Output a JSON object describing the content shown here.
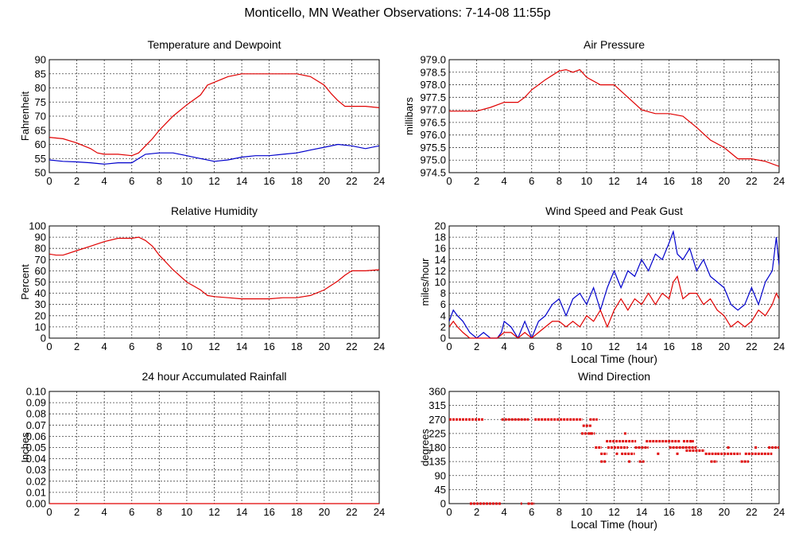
{
  "title": "Monticello, MN Weather Observations: 7-14-08 11:55p",
  "colors": {
    "red": "#e00000",
    "blue": "#0000cc",
    "grid": "#444444"
  },
  "chart_data": [
    {
      "id": "temp",
      "type": "line",
      "title": "Temperature and Dewpoint",
      "ylabel": "Fahrenheit",
      "xlabel": "",
      "xlim": [
        0,
        24
      ],
      "ylim": [
        50,
        90
      ],
      "ytick_labels": [
        "50",
        "55",
        "60",
        "65",
        "70",
        "75",
        "80",
        "85",
        "90"
      ],
      "xtick_labels": [
        "0",
        "2",
        "4",
        "6",
        "8",
        "10",
        "12",
        "14",
        "16",
        "18",
        "20",
        "22",
        "24"
      ],
      "series": [
        {
          "color": "red",
          "x": [
            0,
            1,
            2,
            3,
            3.5,
            4,
            5,
            6,
            6.5,
            7,
            7.5,
            8,
            9,
            10,
            11,
            11.5,
            12,
            13,
            14,
            15,
            16,
            17,
            18,
            19,
            20,
            20.5,
            21,
            21.5,
            22,
            23,
            24
          ],
          "y": [
            62.5,
            62,
            60.5,
            58.5,
            57,
            56.5,
            56.5,
            56,
            57,
            59.5,
            62,
            65,
            70,
            74,
            77.5,
            81,
            82,
            84,
            85,
            85,
            85,
            85,
            85,
            84,
            81,
            78,
            75.5,
            73.5,
            73.5,
            73.5,
            73
          ]
        },
        {
          "color": "blue",
          "x": [
            0,
            1,
            2,
            3,
            4,
            5,
            6,
            6.5,
            7,
            8,
            9,
            10,
            11,
            12,
            13,
            14,
            15,
            16,
            17,
            18,
            19,
            20,
            21,
            22,
            23,
            24
          ],
          "y": [
            54.5,
            54,
            53.8,
            53.5,
            53,
            53.5,
            53.5,
            55,
            56.5,
            57,
            57,
            56,
            55,
            54,
            54.5,
            55.5,
            56,
            56,
            56.5,
            57,
            58,
            59,
            60,
            59.5,
            58.5,
            59.5
          ]
        }
      ]
    },
    {
      "id": "pressure",
      "type": "line",
      "title": "Air Pressure",
      "ylabel": "millibars",
      "xlabel": "",
      "xlim": [
        0,
        24
      ],
      "ylim": [
        974.5,
        979.0
      ],
      "ytick_labels": [
        "974.5",
        "975.0",
        "975.5",
        "976.0",
        "976.5",
        "977.0",
        "977.5",
        "978.0",
        "978.5",
        "979.0"
      ],
      "xtick_labels": [
        "0",
        "2",
        "4",
        "6",
        "8",
        "10",
        "12",
        "14",
        "16",
        "18",
        "20",
        "22",
        "24"
      ],
      "series": [
        {
          "color": "red",
          "x": [
            0,
            1,
            2,
            3,
            4,
            5,
            5.5,
            6,
            6.5,
            7,
            8,
            8.5,
            9,
            9.5,
            10,
            11,
            12,
            13,
            14,
            15,
            16,
            17,
            18,
            19,
            20,
            21,
            22,
            23,
            24
          ],
          "y": [
            976.95,
            976.95,
            976.95,
            977.1,
            977.3,
            977.3,
            977.5,
            977.8,
            978.0,
            978.2,
            978.55,
            978.6,
            978.5,
            978.6,
            978.3,
            978.0,
            978.0,
            977.5,
            977.0,
            976.85,
            976.85,
            976.75,
            976.3,
            975.8,
            975.5,
            975.05,
            975.05,
            974.95,
            974.75
          ]
        }
      ]
    },
    {
      "id": "rh",
      "type": "line",
      "title": "Relative Humidity",
      "ylabel": "Percent",
      "xlabel": "",
      "xlim": [
        0,
        24
      ],
      "ylim": [
        0,
        100
      ],
      "ytick_labels": [
        "0",
        "10",
        "20",
        "30",
        "40",
        "50",
        "60",
        "70",
        "80",
        "90",
        "100"
      ],
      "xtick_labels": [
        "0",
        "2",
        "4",
        "6",
        "8",
        "10",
        "12",
        "14",
        "16",
        "18",
        "20",
        "22",
        "24"
      ],
      "series": [
        {
          "color": "red",
          "x": [
            0,
            0.5,
            1,
            2,
            3,
            4,
            5,
            6,
            6.5,
            7,
            7.5,
            8,
            9,
            10,
            11,
            11.5,
            12,
            13,
            14,
            15,
            16,
            17,
            18,
            19,
            20,
            21,
            21.5,
            22,
            23,
            24
          ],
          "y": [
            75,
            74,
            74,
            78,
            82,
            86,
            89,
            89,
            90,
            87,
            82,
            74,
            61,
            50,
            43,
            38,
            37,
            36,
            35,
            35,
            35,
            36,
            36,
            38,
            43,
            51,
            56,
            60,
            60,
            61
          ]
        }
      ]
    },
    {
      "id": "wind",
      "type": "line",
      "title": "Wind Speed and Peak Gust",
      "ylabel": "miles/hour",
      "xlabel": "Local Time (hour)",
      "xlim": [
        0,
        24
      ],
      "ylim": [
        0,
        20
      ],
      "ytick_labels": [
        "0",
        "2",
        "4",
        "6",
        "8",
        "10",
        "12",
        "14",
        "16",
        "18",
        "20"
      ],
      "xtick_labels": [
        "0",
        "2",
        "4",
        "6",
        "8",
        "10",
        "12",
        "14",
        "16",
        "18",
        "20",
        "22",
        "24"
      ],
      "series": [
        {
          "color": "blue",
          "x": [
            0,
            0.3,
            0.6,
            1,
            1.5,
            2,
            2.5,
            3,
            3.5,
            3.8,
            4,
            4.5,
            5,
            5.5,
            6,
            6.5,
            7,
            7.5,
            8,
            8.5,
            9,
            9.5,
            10,
            10.5,
            11,
            11.5,
            12,
            12.5,
            13,
            13.5,
            14,
            14.5,
            15,
            15.5,
            16,
            16.3,
            16.6,
            17,
            17.5,
            18,
            18.5,
            19,
            19.5,
            20,
            20.5,
            21,
            21.5,
            22,
            22.5,
            23,
            23.5,
            23.8,
            24
          ],
          "y": [
            3,
            5,
            4,
            3,
            1,
            0,
            1,
            0,
            0,
            1,
            3,
            2,
            0,
            3,
            0,
            3,
            4,
            6,
            7,
            4,
            7,
            8,
            6,
            9,
            5,
            9,
            12,
            9,
            12,
            11,
            14,
            12,
            15,
            14,
            17,
            19,
            15,
            14,
            16,
            12,
            14,
            11,
            10,
            9,
            6,
            5,
            6,
            9,
            6,
            10,
            12,
            18,
            13
          ]
        },
        {
          "color": "red",
          "x": [
            0,
            0.3,
            0.6,
            1,
            1.5,
            2,
            2.5,
            3,
            3.5,
            4,
            4.5,
            5,
            5.5,
            6,
            6.5,
            7,
            7.5,
            8,
            8.5,
            9,
            9.5,
            10,
            10.5,
            11,
            11.5,
            12,
            12.5,
            13,
            13.5,
            14,
            14.5,
            15,
            15.5,
            16,
            16.3,
            16.6,
            17,
            17.5,
            18,
            18.5,
            19,
            19.5,
            20,
            20.5,
            21,
            21.5,
            22,
            22.5,
            23,
            23.5,
            23.8,
            24
          ],
          "y": [
            2,
            3,
            2,
            1,
            0,
            0,
            0,
            0,
            0,
            1,
            1,
            0,
            1,
            0,
            1,
            2,
            3,
            3,
            2,
            3,
            2,
            4,
            3,
            5,
            2,
            5,
            7,
            5,
            7,
            6,
            8,
            6,
            8,
            7,
            10,
            11,
            7,
            8,
            8,
            6,
            7,
            5,
            4,
            2,
            3,
            2,
            3,
            5,
            4,
            6,
            8,
            7
          ]
        }
      ]
    },
    {
      "id": "rain",
      "type": "line",
      "title": "24 hour Accumulated Rainfall",
      "ylabel": "Inches",
      "xlabel": "",
      "xlim": [
        0,
        24
      ],
      "ylim": [
        0,
        0.1
      ],
      "ytick_labels": [
        "0.00",
        "0.01",
        "0.02",
        "0.03",
        "0.04",
        "0.05",
        "0.06",
        "0.07",
        "0.08",
        "0.09",
        "0.10"
      ],
      "xtick_labels": [
        "0",
        "2",
        "4",
        "6",
        "8",
        "10",
        "12",
        "14",
        "16",
        "18",
        "20",
        "22",
        "24"
      ],
      "series": [
        {
          "color": "red",
          "x": [
            0,
            24
          ],
          "y": [
            0,
            0
          ]
        }
      ]
    },
    {
      "id": "dir",
      "type": "scatter",
      "title": "Wind Direction",
      "ylabel": "degrees",
      "xlabel": "Local Time (hour)",
      "xlim": [
        0,
        24
      ],
      "ylim": [
        0,
        360
      ],
      "ytick_labels": [
        "0",
        "45",
        "90",
        "135",
        "180",
        "225",
        "270",
        "315",
        "360"
      ],
      "xtick_labels": [
        "0",
        "2",
        "4",
        "6",
        "8",
        "10",
        "12",
        "14",
        "16",
        "18",
        "20",
        "22",
        "24"
      ],
      "segments": [
        {
          "x": [
            0,
            2.5
          ],
          "y": 270
        },
        {
          "x": [
            1.5,
            3.8
          ],
          "y": 0
        },
        {
          "x": [
            3.8,
            5.8
          ],
          "y": 270
        },
        {
          "x": [
            5.2,
            5.3
          ],
          "y": 0
        },
        {
          "x": [
            5.7,
            6.2
          ],
          "y": 0
        },
        {
          "x": [
            6.2,
            9.7
          ],
          "y": 270
        },
        {
          "x": [
            9.7,
            10.4
          ],
          "y": 250
        },
        {
          "x": [
            9.6,
            10.6
          ],
          "y": 225
        },
        {
          "x": [
            10.2,
            10.8
          ],
          "y": 270
        },
        {
          "x": [
            10.6,
            11.1
          ],
          "y": 180
        },
        {
          "x": [
            11.0,
            11.4
          ],
          "y": 135
        },
        {
          "x": [
            11.0,
            11.5
          ],
          "y": 160
        },
        {
          "x": [
            11.4,
            13.6
          ],
          "y": 200
        },
        {
          "x": [
            11.5,
            13.0
          ],
          "y": 180
        },
        {
          "x": [
            12.5,
            13.5
          ],
          "y": 160
        },
        {
          "x": [
            13.5,
            14.5
          ],
          "y": 180
        },
        {
          "x": [
            14.3,
            16.8
          ],
          "y": 200
        },
        {
          "x": [
            13.8,
            14.2
          ],
          "y": 135
        },
        {
          "x": [
            16.0,
            18.0
          ],
          "y": 180
        },
        {
          "x": [
            17.0,
            17.8
          ],
          "y": 200
        },
        {
          "x": [
            17.2,
            18.6
          ],
          "y": 170
        },
        {
          "x": [
            18.6,
            19.5
          ],
          "y": 160
        },
        {
          "x": [
            19.0,
            19.5
          ],
          "y": 135
        },
        {
          "x": [
            19.5,
            21.2
          ],
          "y": 160
        },
        {
          "x": [
            21.2,
            21.8
          ],
          "y": 135
        },
        {
          "x": [
            21.5,
            23.5
          ],
          "y": 160
        },
        {
          "x": [
            23.2,
            24
          ],
          "y": 180
        }
      ],
      "dots": [
        {
          "x": 10.3,
          "y": 225
        },
        {
          "x": 12.2,
          "y": 160
        },
        {
          "x": 13.1,
          "y": 135
        },
        {
          "x": 15.2,
          "y": 160
        },
        {
          "x": 16.6,
          "y": 160
        },
        {
          "x": 17.6,
          "y": 200
        },
        {
          "x": 20.3,
          "y": 180
        },
        {
          "x": 22.3,
          "y": 180
        },
        {
          "x": 12.8,
          "y": 225
        }
      ]
    }
  ]
}
